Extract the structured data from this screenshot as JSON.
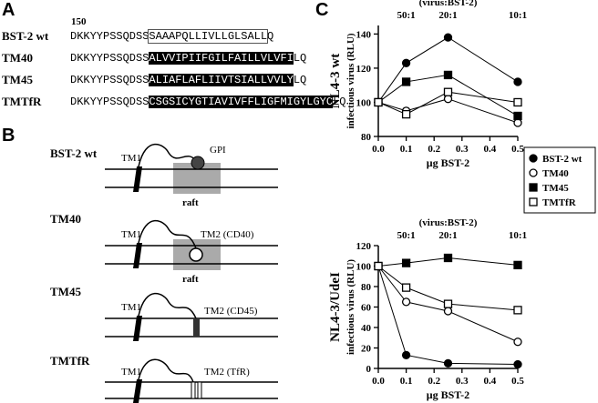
{
  "panels": {
    "A": {
      "label": "A",
      "position": "150",
      "rows": [
        {
          "name": "BST-2 wt",
          "prefix": "DKKYYPSSQDSS",
          "boxed": "SAAAPQLLIVLLGLSALL",
          "suffix": "Q"
        },
        {
          "name": "TM40",
          "prefix": "DKKYYPSSQDSS",
          "boxed": "ALVVIPIIFGILFAILLVLVFI",
          "suffix": "LQ"
        },
        {
          "name": "TM45",
          "prefix": "DKKYYPSSQDSS",
          "boxed": "ALIAFLAFLIIVTSIALLVVLY",
          "suffix": "LQ"
        },
        {
          "name": "TMTfR",
          "prefix": "DKKYYPSSQDSS",
          "boxed": "CSGSICYGTIAVIVFFLIGFMIGYLGYC",
          "suffix": "LQ"
        }
      ]
    },
    "B": {
      "label": "B",
      "diagrams": [
        {
          "name": "BST-2 wt",
          "tm1": "TM1",
          "anchor": "GPI",
          "raft": "raft"
        },
        {
          "name": "TM40",
          "tm1": "TM1",
          "anchor": "TM2 (CD40)",
          "raft": "raft"
        },
        {
          "name": "TM45",
          "tm1": "TM1",
          "anchor": "TM2 (CD45)"
        },
        {
          "name": "TMTfR",
          "tm1": "TM1",
          "anchor": "TM2 (TfR)"
        }
      ]
    },
    "C": {
      "label": "C"
    }
  },
  "chart_data": [
    {
      "type": "line",
      "panel_title": "NL4-3 wt",
      "ylabel": "infectious virus (RLU)",
      "xlabel": "μg BST-2",
      "top_title": "(virus:BST-2)",
      "top_labels": [
        {
          "value": 0.1,
          "label": "50:1"
        },
        {
          "value": 0.25,
          "label": "20:1"
        },
        {
          "value": 0.5,
          "label": "10:1"
        }
      ],
      "x": [
        0,
        0.1,
        0.25,
        0.5
      ],
      "xlim": [
        0,
        0.5
      ],
      "xticks": [
        {
          "value": 0,
          "label": "0.0"
        },
        0.1,
        0.2,
        0.3,
        0.4,
        0.5
      ],
      "ylim": [
        80,
        145
      ],
      "yticks": [
        80,
        100,
        120,
        140
      ],
      "legend": "right",
      "series": [
        {
          "name": "BST-2 wt",
          "color": "#000000",
          "marker": "circle",
          "filled": true,
          "values": [
            100,
            123,
            138,
            112
          ]
        },
        {
          "name": "TM40",
          "color": "#000000",
          "marker": "circle",
          "filled": false,
          "values": [
            100,
            95,
            102,
            88
          ]
        },
        {
          "name": "TM45",
          "color": "#000000",
          "marker": "square",
          "filled": true,
          "values": [
            100,
            112,
            116,
            92
          ]
        },
        {
          "name": "TMTfR",
          "color": "#000000",
          "marker": "square",
          "filled": false,
          "values": [
            100,
            93,
            106,
            100
          ]
        }
      ]
    },
    {
      "type": "line",
      "panel_title": "NL4-3/UdeI",
      "ylabel": "infectious virus (RLU)",
      "xlabel": "μg BST-2",
      "top_title": "(virus:BST-2)",
      "top_labels": [
        {
          "value": 0.1,
          "label": "50:1"
        },
        {
          "value": 0.25,
          "label": "20:1"
        },
        {
          "value": 0.5,
          "label": "10:1"
        }
      ],
      "x": [
        0,
        0.1,
        0.25,
        0.5
      ],
      "xlim": [
        0,
        0.5
      ],
      "xticks": [
        {
          "value": 0,
          "label": "0.0"
        },
        0.1,
        0.2,
        0.3,
        0.4,
        0.5
      ],
      "ylim": [
        0,
        120
      ],
      "yticks": [
        0,
        20,
        40,
        60,
        80,
        100,
        120
      ],
      "series": [
        {
          "name": "BST-2 wt",
          "color": "#000000",
          "marker": "circle",
          "filled": true,
          "values": [
            100,
            13,
            5,
            4
          ]
        },
        {
          "name": "TM40",
          "color": "#000000",
          "marker": "circle",
          "filled": false,
          "values": [
            100,
            65,
            56,
            26
          ]
        },
        {
          "name": "TM45",
          "color": "#000000",
          "marker": "square",
          "filled": true,
          "values": [
            100,
            103,
            108,
            101
          ]
        },
        {
          "name": "TMTfR",
          "color": "#000000",
          "marker": "square",
          "filled": false,
          "values": [
            100,
            79,
            63,
            57
          ]
        }
      ]
    }
  ]
}
